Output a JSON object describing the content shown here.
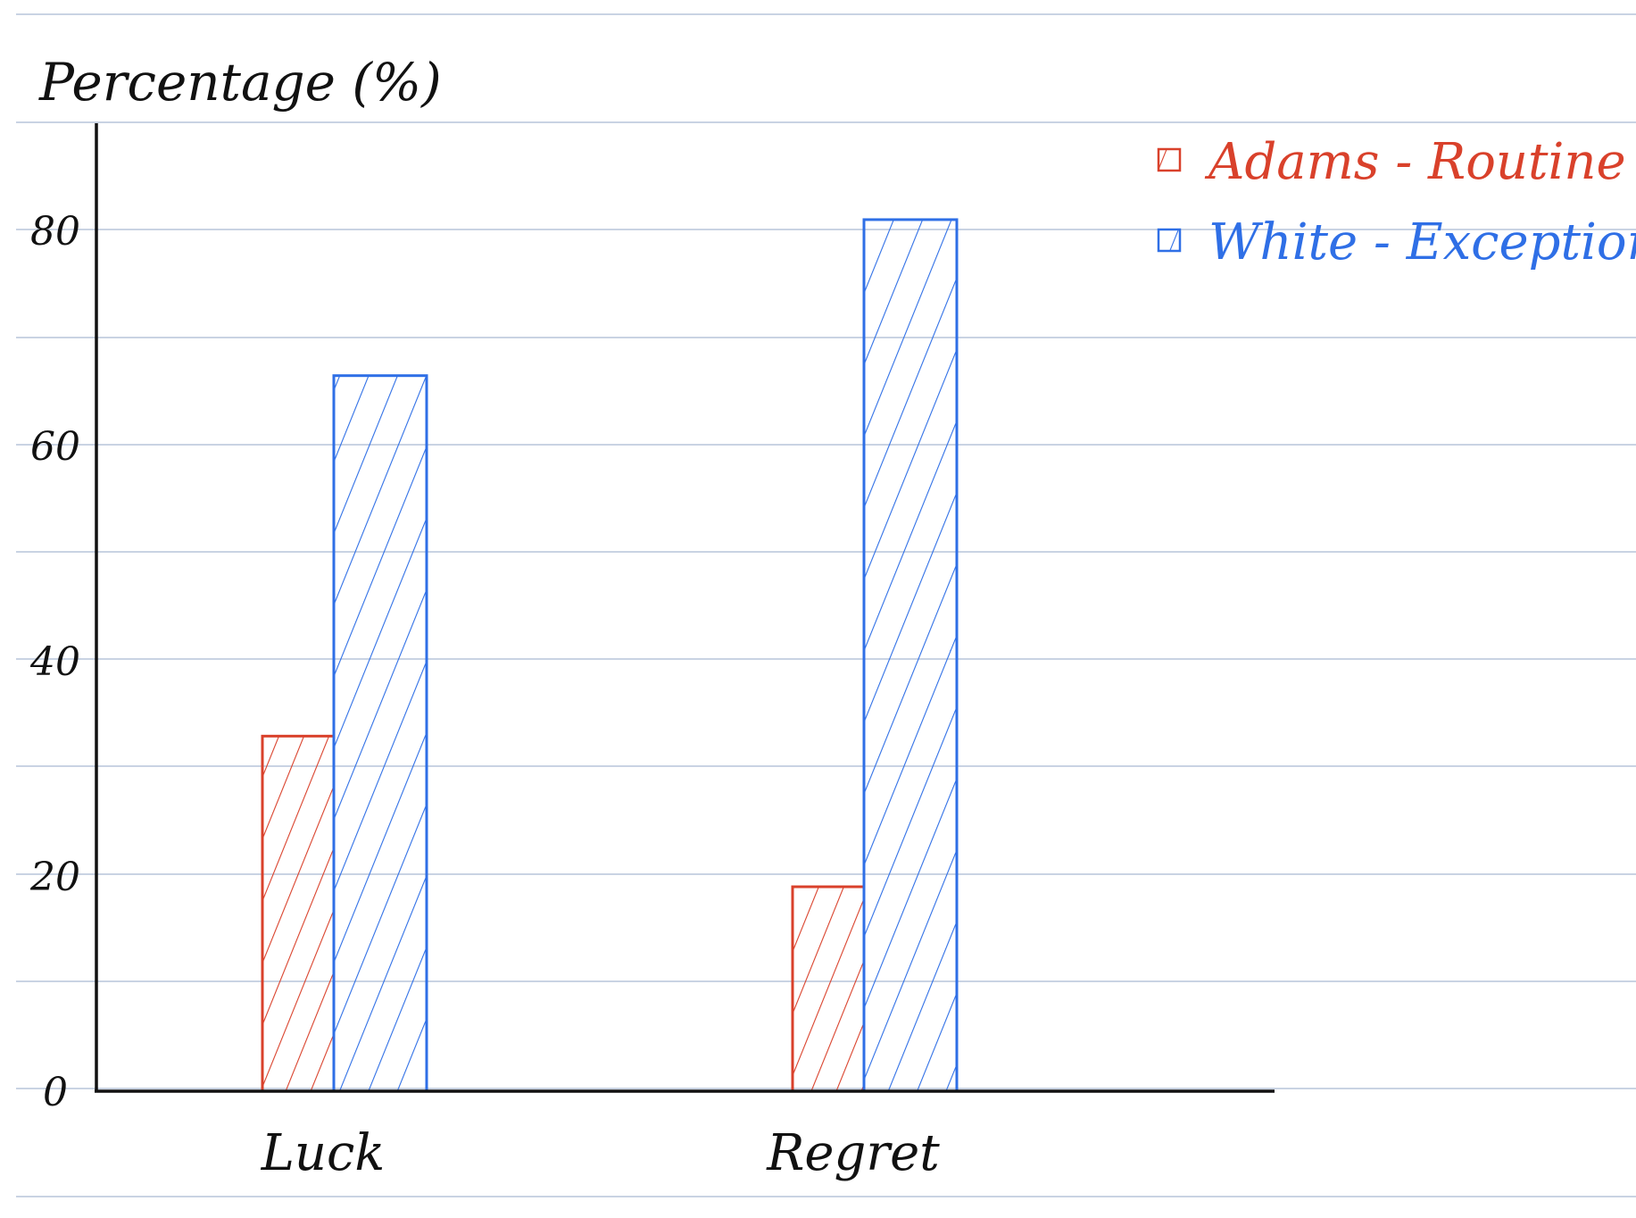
{
  "chart_data": {
    "type": "bar",
    "ylabel": "Percentage (%)",
    "xlabel": "",
    "categories": [
      "Luck",
      "Regret"
    ],
    "series": [
      {
        "name": "Adams - Routine",
        "values": [
          33,
          19
        ],
        "color": "#d9412b"
      },
      {
        "name": "White - Exception",
        "values": [
          66.5,
          81
        ],
        "color": "#2f6fe6"
      }
    ],
    "ylim": [
      0,
      90
    ],
    "yticks": [
      0,
      20,
      40,
      60,
      80
    ],
    "legend_position": "top-right",
    "bar_fill": "diagonal hatch",
    "grid": "ruled notebook lines"
  }
}
